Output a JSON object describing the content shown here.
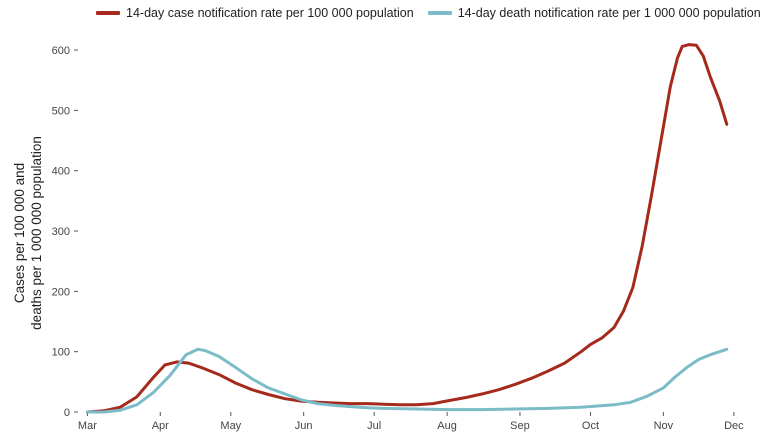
{
  "chart_data": {
    "type": "line",
    "title": "",
    "xlabel": "",
    "ylabel": [
      "Cases per 100 000 and",
      "deaths per 1 000 000 population"
    ],
    "ylim": [
      0,
      620
    ],
    "yticks": [
      0,
      100,
      200,
      300,
      400,
      500,
      600
    ],
    "xlim": [
      "2020-02-26",
      "2020-12-07"
    ],
    "xticks": [
      {
        "date": "2020-03-01",
        "label": "Mar"
      },
      {
        "date": "2020-04-01",
        "label": "Apr"
      },
      {
        "date": "2020-05-01",
        "label": "May"
      },
      {
        "date": "2020-06-01",
        "label": "Jun"
      },
      {
        "date": "2020-07-01",
        "label": "Jul"
      },
      {
        "date": "2020-08-01",
        "label": "Aug"
      },
      {
        "date": "2020-09-01",
        "label": "Sep"
      },
      {
        "date": "2020-10-01",
        "label": "Oct"
      },
      {
        "date": "2020-11-01",
        "label": "Nov"
      },
      {
        "date": "2020-12-01",
        "label": "Dec"
      }
    ],
    "grid": false,
    "legend_position": "top",
    "series": [
      {
        "name": "14-day case notification rate per 100 000 population",
        "color": "#a52a1c",
        "points": [
          [
            "2020-03-01",
            0
          ],
          [
            "2020-03-08",
            2
          ],
          [
            "2020-03-15",
            8
          ],
          [
            "2020-03-22",
            25
          ],
          [
            "2020-03-29",
            57
          ],
          [
            "2020-04-03",
            78
          ],
          [
            "2020-04-08",
            83
          ],
          [
            "2020-04-13",
            81
          ],
          [
            "2020-04-19",
            73
          ],
          [
            "2020-04-26",
            62
          ],
          [
            "2020-05-03",
            48
          ],
          [
            "2020-05-10",
            37
          ],
          [
            "2020-05-17",
            29
          ],
          [
            "2020-05-24",
            22
          ],
          [
            "2020-05-31",
            18
          ],
          [
            "2020-06-07",
            16
          ],
          [
            "2020-06-14",
            15
          ],
          [
            "2020-06-21",
            14
          ],
          [
            "2020-06-28",
            14
          ],
          [
            "2020-07-05",
            13
          ],
          [
            "2020-07-12",
            12
          ],
          [
            "2020-07-19",
            12
          ],
          [
            "2020-07-26",
            14
          ],
          [
            "2020-08-02",
            19
          ],
          [
            "2020-08-09",
            24
          ],
          [
            "2020-08-16",
            30
          ],
          [
            "2020-08-23",
            37
          ],
          [
            "2020-08-30",
            46
          ],
          [
            "2020-09-06",
            56
          ],
          [
            "2020-09-13",
            68
          ],
          [
            "2020-09-20",
            81
          ],
          [
            "2020-09-27",
            100
          ],
          [
            "2020-10-01",
            112
          ],
          [
            "2020-10-06",
            123
          ],
          [
            "2020-10-11",
            140
          ],
          [
            "2020-10-15",
            167
          ],
          [
            "2020-10-19",
            206
          ],
          [
            "2020-10-23",
            275
          ],
          [
            "2020-10-27",
            360
          ],
          [
            "2020-10-31",
            450
          ],
          [
            "2020-11-04",
            540
          ],
          [
            "2020-11-07",
            587
          ],
          [
            "2020-11-09",
            606
          ],
          [
            "2020-11-12",
            609
          ],
          [
            "2020-11-15",
            608
          ],
          [
            "2020-11-18",
            590
          ],
          [
            "2020-11-21",
            555
          ],
          [
            "2020-11-25",
            515
          ],
          [
            "2020-11-28",
            477
          ]
        ]
      },
      {
        "name": "14-day death notification rate per 1 000 000 population",
        "color": "#7bbcc8",
        "points": [
          [
            "2020-03-01",
            0
          ],
          [
            "2020-03-08",
            0
          ],
          [
            "2020-03-15",
            3
          ],
          [
            "2020-03-22",
            12
          ],
          [
            "2020-03-29",
            32
          ],
          [
            "2020-04-05",
            60
          ],
          [
            "2020-04-12",
            95
          ],
          [
            "2020-04-17",
            104
          ],
          [
            "2020-04-20",
            102
          ],
          [
            "2020-04-26",
            92
          ],
          [
            "2020-05-03",
            74
          ],
          [
            "2020-05-10",
            55
          ],
          [
            "2020-05-17",
            40
          ],
          [
            "2020-05-24",
            30
          ],
          [
            "2020-05-31",
            20
          ],
          [
            "2020-06-07",
            14
          ],
          [
            "2020-06-14",
            11
          ],
          [
            "2020-06-21",
            9
          ],
          [
            "2020-06-28",
            7
          ],
          [
            "2020-07-05",
            6
          ],
          [
            "2020-07-19",
            5
          ],
          [
            "2020-08-02",
            4
          ],
          [
            "2020-08-16",
            4
          ],
          [
            "2020-08-30",
            5
          ],
          [
            "2020-09-13",
            6
          ],
          [
            "2020-09-27",
            8
          ],
          [
            "2020-10-04",
            10
          ],
          [
            "2020-10-11",
            12
          ],
          [
            "2020-10-18",
            16
          ],
          [
            "2020-10-25",
            26
          ],
          [
            "2020-11-01",
            40
          ],
          [
            "2020-11-06",
            58
          ],
          [
            "2020-11-11",
            74
          ],
          [
            "2020-11-16",
            87
          ],
          [
            "2020-11-21",
            95
          ],
          [
            "2020-11-28",
            104
          ]
        ]
      }
    ]
  }
}
